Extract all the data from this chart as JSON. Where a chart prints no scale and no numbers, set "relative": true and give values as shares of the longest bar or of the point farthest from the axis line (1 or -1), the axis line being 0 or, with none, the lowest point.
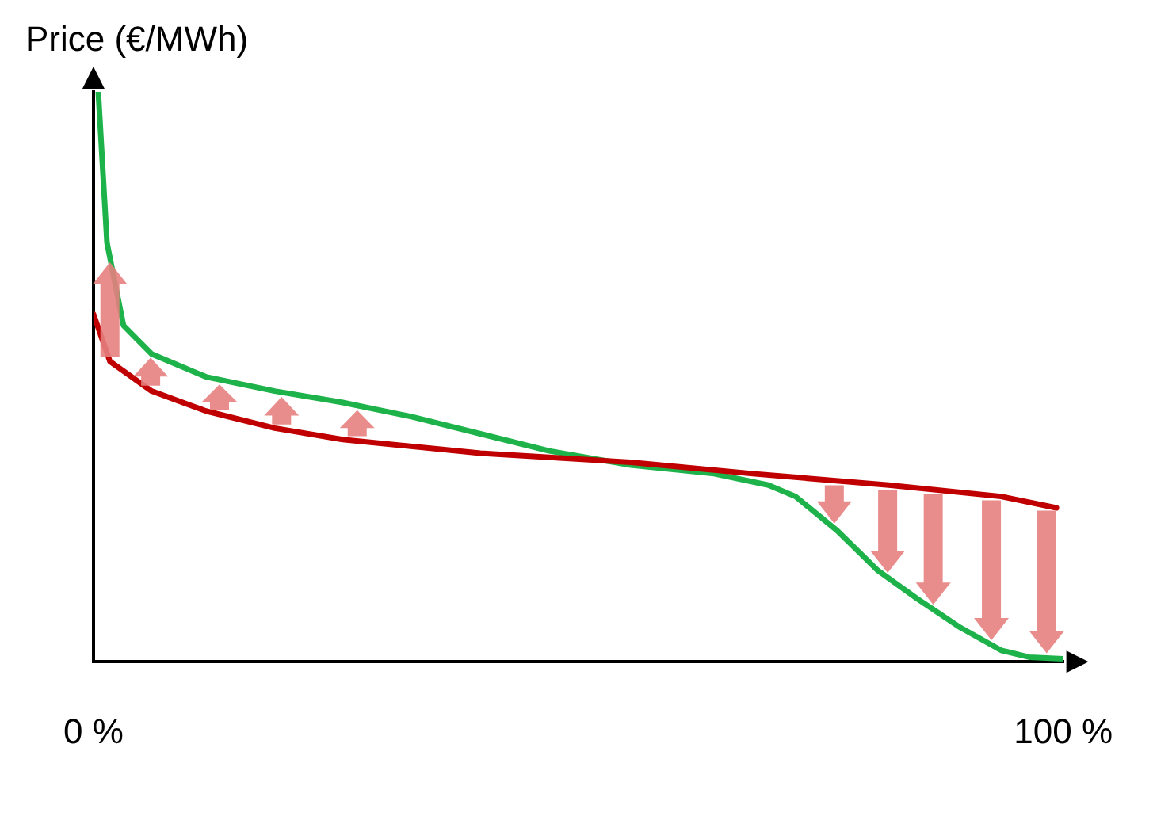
{
  "chart_data": {
    "type": "line",
    "relative": true,
    "ylabel": "Price (€/MWh)",
    "xlim": [
      0,
      100
    ],
    "xticks": [
      {
        "value": 0,
        "label": "0 %"
      },
      {
        "value": 100,
        "label": "100 %"
      }
    ],
    "tick_labels": "x",
    "grid": false,
    "legend": false,
    "marker": "none",
    "line_style": "solid",
    "series": [
      {
        "color": "#c00000",
        "x": [
          0,
          1.7,
          6,
          11.6,
          18.7,
          25.7,
          39.9,
          55.4,
          68,
          82,
          93.6,
          99.3
        ],
        "values": [
          0.61,
          0.527,
          0.475,
          0.44,
          0.41,
          0.39,
          0.366,
          0.35,
          0.33,
          0.31,
          0.29,
          0.27
        ]
      },
      {
        "color": "#1db34a",
        "x": [
          0.5,
          1.4,
          3.1,
          6,
          11.6,
          18.7,
          25.7,
          32.8,
          39.9,
          47,
          55.4,
          64,
          69.6,
          72.4,
          76.7,
          80.9,
          85,
          89.4,
          93.6,
          96.5,
          100
        ],
        "values": [
          1,
          0.735,
          0.59,
          0.54,
          0.5,
          0.475,
          0.455,
          0.43,
          0.4,
          0.37,
          0.345,
          0.33,
          0.31,
          0.29,
          0.23,
          0.16,
          0.11,
          0.06,
          0.02,
          0.008,
          0.005
        ]
      }
    ]
  }
}
